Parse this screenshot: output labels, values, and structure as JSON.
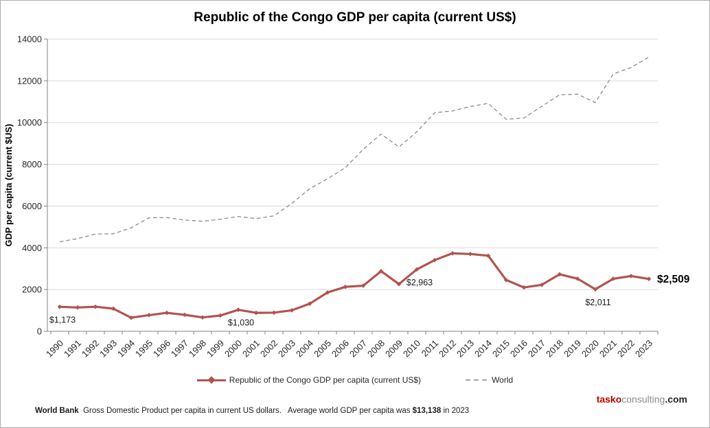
{
  "title": "Republic of the Congo GDP per capita (current US$)",
  "chart_data": {
    "type": "line",
    "title": "Republic of the Congo GDP per capita (current US$)",
    "xlabel": "",
    "ylabel": "GDP per capita (current $US)",
    "ylim": [
      0,
      14000
    ],
    "ytick_step": 2000,
    "grid": "horizontal",
    "legend_position": "bottom",
    "categories": [
      "1990",
      "1991",
      "1992",
      "1993",
      "1994",
      "1995",
      "1996",
      "1997",
      "1998",
      "1999",
      "2000",
      "2001",
      "2002",
      "2003",
      "2004",
      "2005",
      "2006",
      "2007",
      "2008",
      "2009",
      "2010",
      "2011",
      "2012",
      "2013",
      "2014",
      "2015",
      "2016",
      "2017",
      "2018",
      "2019",
      "2020",
      "2021",
      "2022",
      "2023"
    ],
    "series": [
      {
        "name": "Republic of the Congo GDP per capita (current US$)",
        "color": "#b2534e",
        "style": "solid-markers",
        "values": [
          1173,
          1140,
          1175,
          1085,
          650,
          775,
          885,
          790,
          665,
          755,
          1030,
          885,
          895,
          1005,
          1320,
          1860,
          2130,
          2185,
          2880,
          2260,
          2963,
          3410,
          3735,
          3705,
          3620,
          2460,
          2100,
          2225,
          2730,
          2520,
          2011,
          2515,
          2650,
          2509
        ]
      },
      {
        "name": "World",
        "color": "#8a8a8a",
        "style": "dashed",
        "values": [
          4290,
          4440,
          4660,
          4670,
          4960,
          5440,
          5450,
          5330,
          5270,
          5370,
          5500,
          5400,
          5530,
          6130,
          6830,
          7310,
          7840,
          8720,
          9450,
          8830,
          9560,
          10470,
          10560,
          10770,
          10920,
          10160,
          10220,
          10780,
          11330,
          11360,
          10960,
          12330,
          12640,
          13138
        ]
      }
    ],
    "annotations": [
      {
        "year": "1990",
        "text": "$1,173",
        "placement": "below"
      },
      {
        "year": "2000",
        "text": "$1,030",
        "placement": "below"
      },
      {
        "year": "2010",
        "text": "$2,963",
        "placement": "below"
      },
      {
        "year": "2020",
        "text": "$2,011",
        "placement": "below"
      },
      {
        "year": "2023",
        "text": "$2,509",
        "placement": "right-bold"
      }
    ],
    "colors": {
      "grid": "#d9d9d9",
      "axis": "#808080",
      "text": "#262626"
    }
  },
  "legend": {
    "congo_label": "Republic of the Congo GDP per capita (current US$)",
    "world_label": "World"
  },
  "branding": {
    "parts": [
      {
        "text": "tasko",
        "color": "#c00000"
      },
      {
        "text": "consulting",
        "color": "#8c8c8c"
      },
      {
        "text": ".com",
        "color": "#262626"
      }
    ]
  },
  "footer": {
    "segments": [
      {
        "text": "World Bank",
        "bold": true
      },
      {
        "text": "  Gross Domestic Product per capita in current US dollars.   Average world GDP per capita was ",
        "bold": false
      },
      {
        "text": "$13,138",
        "bold": true
      },
      {
        "text": " in 2023",
        "bold": false
      }
    ]
  }
}
